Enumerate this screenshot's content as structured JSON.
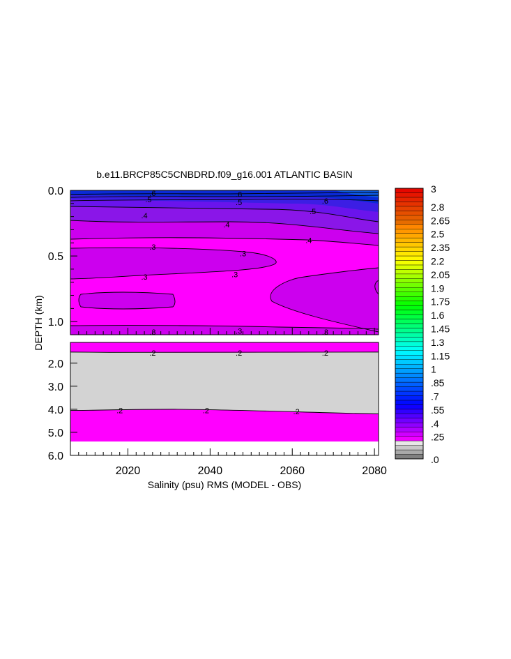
{
  "chart_data": {
    "type": "heatmap",
    "title": "b.e11.BRCP85C5CNBDRD.f09_g16.001 ATLANTIC BASIN",
    "xlabel": "Salinity (psu) RMS (MODEL - OBS)",
    "ylabel": "DEPTH (km)",
    "x_ticks": [
      "2020",
      "2040",
      "2060",
      "2080"
    ],
    "x_tick_values": [
      2020,
      2040,
      2060,
      2080
    ],
    "xlim": [
      2006,
      2081
    ],
    "panels": [
      {
        "name": "upper",
        "ylim": [
          0.0,
          1.1
        ],
        "y_ticks": [
          "0.0",
          "0.5",
          "1.0"
        ],
        "y_tick_values": [
          0.0,
          0.5,
          1.0
        ]
      },
      {
        "name": "lower",
        "ylim": [
          1.1,
          6.0
        ],
        "y_ticks": [
          "2.0",
          "3.0",
          "4.0",
          "5.0",
          "6.0"
        ],
        "y_tick_values": [
          2.0,
          3.0,
          4.0,
          5.0,
          6.0
        ]
      }
    ],
    "contour_labels": [
      {
        "text": ".6",
        "panel": "upper",
        "x": 2026,
        "y": 0.02
      },
      {
        "text": ".6",
        "panel": "upper",
        "x": 2047,
        "y": 0.03
      },
      {
        "text": ".6",
        "panel": "upper",
        "x": 2068,
        "y": 0.08
      },
      {
        "text": ".5",
        "panel": "upper",
        "x": 2025,
        "y": 0.07
      },
      {
        "text": ".5",
        "panel": "upper",
        "x": 2047,
        "y": 0.09
      },
      {
        "text": ".5",
        "panel": "upper",
        "x": 2065,
        "y": 0.16
      },
      {
        "text": ".4",
        "panel": "upper",
        "x": 2024,
        "y": 0.19
      },
      {
        "text": ".4",
        "panel": "upper",
        "x": 2044,
        "y": 0.26
      },
      {
        "text": ".4",
        "panel": "upper",
        "x": 2064,
        "y": 0.38
      },
      {
        "text": ".3",
        "panel": "upper",
        "x": 2026,
        "y": 0.43
      },
      {
        "text": ".3",
        "panel": "upper",
        "x": 2048,
        "y": 0.48
      },
      {
        "text": ".3",
        "panel": "upper",
        "x": 2024,
        "y": 0.66
      },
      {
        "text": ".3",
        "panel": "upper",
        "x": 2046,
        "y": 0.64
      },
      {
        "text": ".3",
        "panel": "upper",
        "x": 2026,
        "y": 1.08
      },
      {
        "text": ".3",
        "panel": "upper",
        "x": 2047,
        "y": 1.07
      },
      {
        "text": ".3",
        "panel": "upper",
        "x": 2068,
        "y": 1.08
      },
      {
        "text": ".2",
        "panel": "lower",
        "x": 2026,
        "y": 1.55
      },
      {
        "text": ".2",
        "panel": "lower",
        "x": 2047,
        "y": 1.55
      },
      {
        "text": ".2",
        "panel": "lower",
        "x": 2068,
        "y": 1.55
      },
      {
        "text": ".2",
        "panel": "lower",
        "x": 2018,
        "y": 4.05
      },
      {
        "text": ".2",
        "panel": "lower",
        "x": 2039,
        "y": 4.05
      },
      {
        "text": ".2",
        "panel": "lower",
        "x": 2061,
        "y": 4.1
      }
    ],
    "colorbar": {
      "range": [
        0.0,
        3.0
      ],
      "interval": 0.05,
      "labels": [
        "3",
        "2.8",
        "2.65",
        "2.5",
        "2.35",
        "2.2",
        "2.05",
        "1.9",
        "1.75",
        "1.6",
        "1.45",
        "1.3",
        "1.15",
        "1",
        ".85",
        ".7",
        ".55",
        ".4",
        ".25",
        ".0"
      ],
      "label_values": [
        3.0,
        2.8,
        2.65,
        2.5,
        2.35,
        2.2,
        2.05,
        1.9,
        1.75,
        1.6,
        1.45,
        1.3,
        1.15,
        1.0,
        0.85,
        0.7,
        0.55,
        0.4,
        0.25,
        0.0
      ]
    },
    "colors": {
      "fill_low": "#ff00ff",
      "fill_mid": "#cc00ee",
      "fill_upper": "#8a16e8",
      "fill_top": "#0a2ad6",
      "fill_gray": "#d3d3d3",
      "contour": "#000000"
    }
  }
}
